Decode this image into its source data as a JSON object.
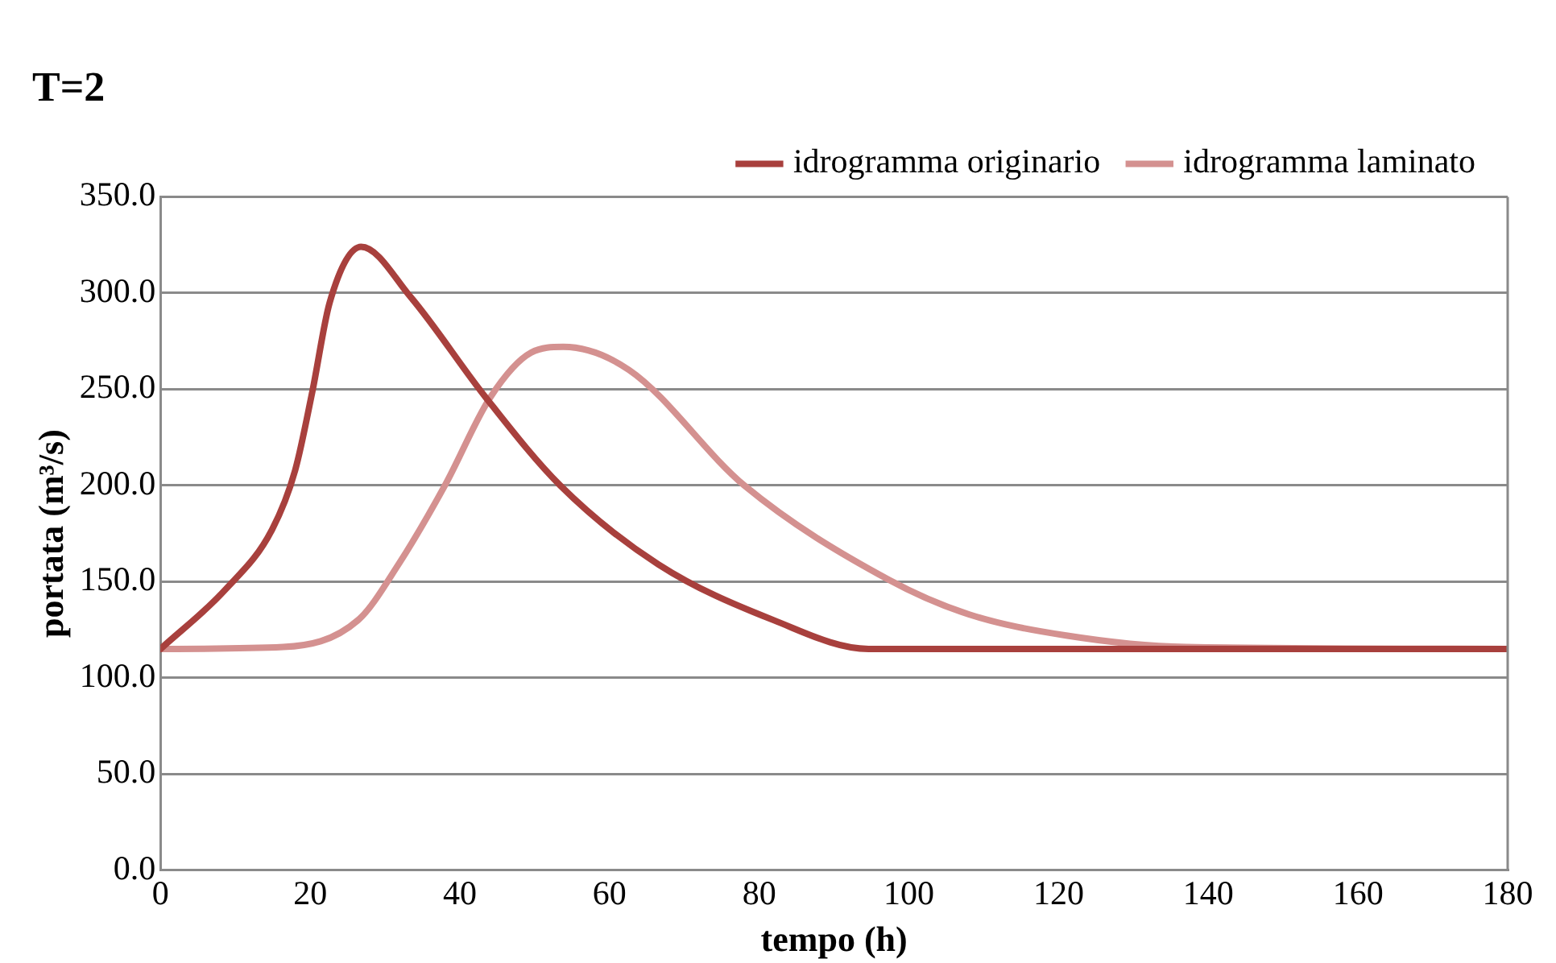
{
  "chart_data": {
    "type": "line",
    "title": "T=2",
    "xlabel": "tempo (h)",
    "ylabel": "portata (m³/s)",
    "xlim": [
      0,
      180
    ],
    "xticks": [
      0,
      20,
      40,
      60,
      80,
      100,
      120,
      140,
      160,
      180
    ],
    "ylim": [
      0,
      350
    ],
    "yticks": [
      {
        "value": 0,
        "label": "0.0"
      },
      {
        "value": 50,
        "label": "50.0"
      },
      {
        "value": 100,
        "label": "100.0"
      },
      {
        "value": 150,
        "label": "150.0"
      },
      {
        "value": 200,
        "label": "200.0"
      },
      {
        "value": 250,
        "label": "250.0"
      },
      {
        "value": 300,
        "label": "300.0"
      },
      {
        "value": 350,
        "label": "350.0"
      }
    ],
    "grid": "y",
    "legend": "top right",
    "marker": "none",
    "line_style": "solid",
    "series": [
      {
        "name": "idrogramma originario",
        "color": "#a8403d",
        "x": [
          0,
          8.7,
          14.9,
          18,
          20.3,
          22.6,
          26.8,
          33.4,
          43.4,
          53.4,
          66.5,
          81.9,
          94.6,
          180
        ],
        "values": [
          115,
          146,
          177,
          208,
          249,
          295,
          324,
          298,
          246,
          200,
          159,
          130,
          115,
          115
        ]
      },
      {
        "name": "idrogramma laminato",
        "color": "#d49190",
        "x": [
          0,
          16.4,
          26.4,
          31.8,
          38,
          44.1,
          49.5,
          53.8,
          62.6,
          78,
          97.3,
          108,
          121,
          137,
          180
        ],
        "values": [
          115,
          116,
          130,
          159,
          200,
          246,
          269,
          272,
          260,
          200,
          151,
          133,
          122,
          116,
          115
        ]
      }
    ]
  }
}
